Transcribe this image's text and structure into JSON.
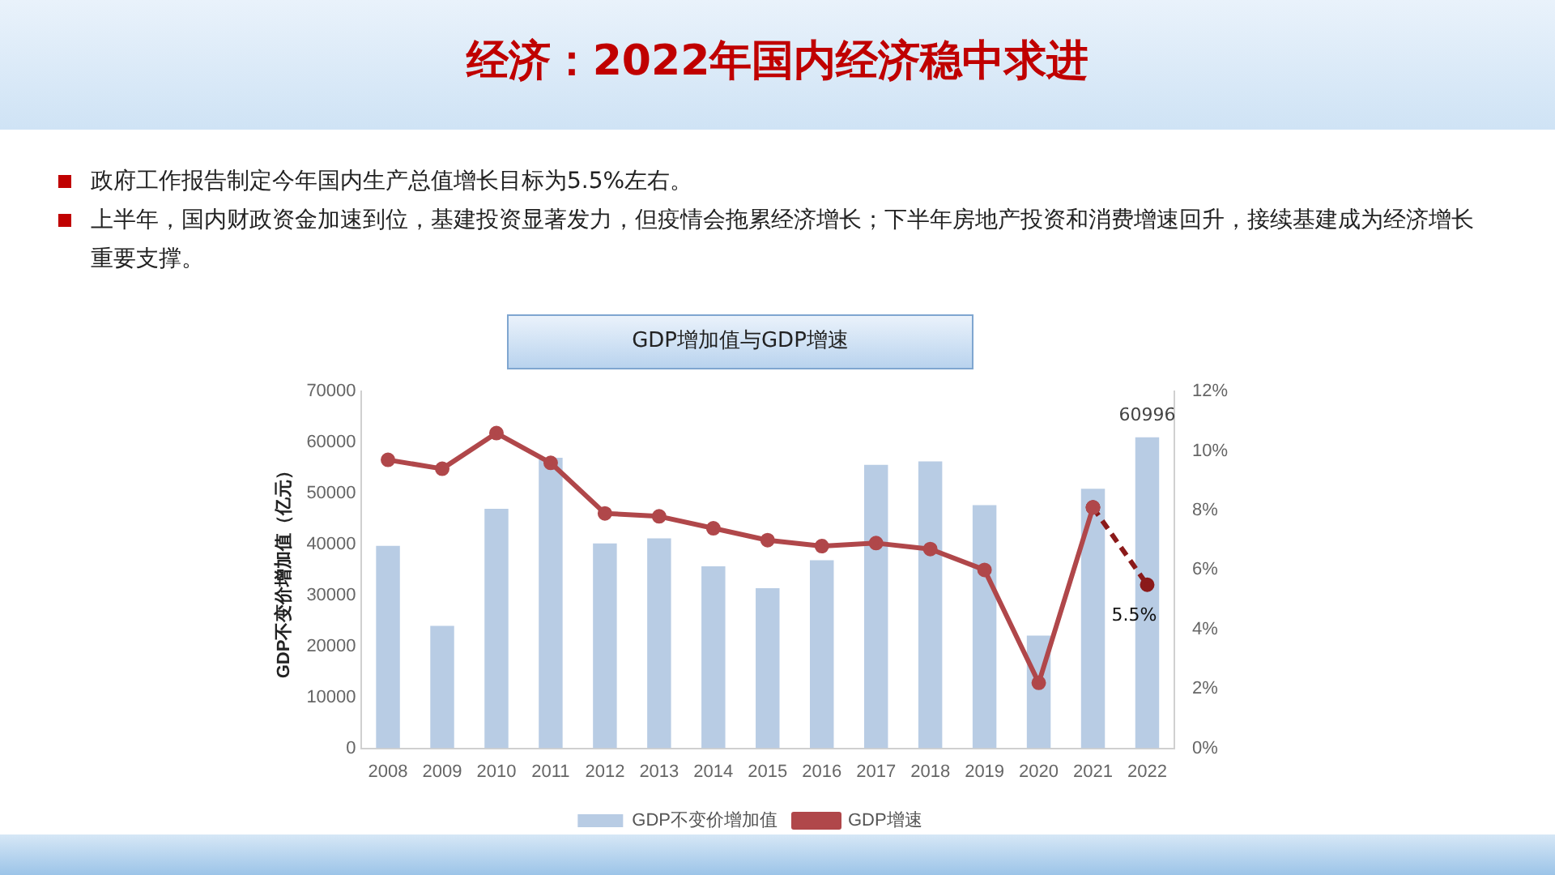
{
  "chart_data": {
    "type": "bar",
    "title": "经济：2022年国内经济稳中求进",
    "subtitle": "GDP增加值与GDP增速",
    "annotations": [
      "政府工作报告制定今年国内生产总值增长目标为5.5%左右。",
      "上半年，国内财政资金加速到位，基建投资显著发力，但疫情会拖累经济增长；下半年房地产投资和消费增速回升，接续基建成为经济增长重要支撑。"
    ],
    "ylabel": "GDP不变价增加值（亿元）",
    "categories": [
      "2008",
      "2009",
      "2010",
      "2011",
      "2012",
      "2013",
      "2014",
      "2015",
      "2016",
      "2017",
      "2018",
      "2019",
      "2020",
      "2021",
      "2022"
    ],
    "series": [
      {
        "name": "GDP不变价增加值",
        "color": "#b8cce4",
        "values": [
          39700,
          24000,
          47000,
          57000,
          40200,
          41200,
          35700,
          31400,
          36900,
          55600,
          56300,
          47700,
          22100,
          50900,
          60996
        ],
        "value_labels": [
          null,
          null,
          null,
          null,
          null,
          null,
          null,
          null,
          null,
          null,
          null,
          null,
          null,
          null,
          "60996"
        ]
      },
      {
        "name": "GDP增速",
        "type": "line",
        "axis": "y2",
        "color": "#b0474a",
        "values": [
          9.7,
          9.4,
          10.6,
          9.6,
          7.9,
          7.8,
          7.4,
          7.0,
          6.8,
          6.9,
          6.7,
          6.0,
          2.2,
          8.1,
          null
        ]
      },
      {
        "type": "line",
        "axis": "y2",
        "line_style": "dashed",
        "color": "#8b1a1a",
        "values": [
          null,
          null,
          null,
          null,
          null,
          null,
          null,
          null,
          null,
          null,
          null,
          null,
          null,
          8.1,
          5.5
        ],
        "value_labels": [
          null,
          null,
          null,
          null,
          null,
          null,
          null,
          null,
          null,
          null,
          null,
          null,
          null,
          null,
          "5.5%"
        ]
      }
    ],
    "ylim": [
      0,
      70000
    ],
    "yticks": [
      0,
      10000,
      20000,
      30000,
      40000,
      50000,
      60000,
      70000
    ],
    "y2lim": [
      0,
      12
    ],
    "y2ticks": [
      {
        "value": 0,
        "label": "0%"
      },
      {
        "value": 2,
        "label": "2%"
      },
      {
        "value": 4,
        "label": "4%"
      },
      {
        "value": 6,
        "label": "6%"
      },
      {
        "value": 8,
        "label": "8%"
      },
      {
        "value": 10,
        "label": "10%"
      },
      {
        "value": 12,
        "label": "12%"
      }
    ],
    "marker": "circle",
    "legend": "bottom",
    "grid": false
  }
}
